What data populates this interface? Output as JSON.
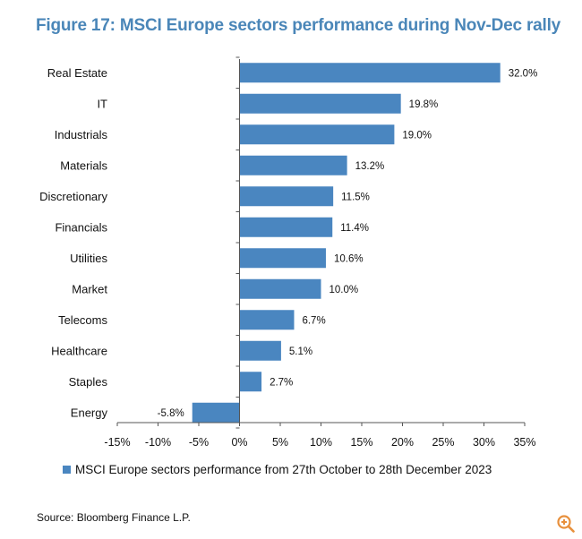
{
  "title": "Figure 17: MSCI Europe sectors performance during Nov-Dec rally",
  "source": "Source: Bloomberg Finance L.P.",
  "zoom_icon": "zoom-in-icon",
  "colors": {
    "title": "#4a86b8",
    "bar": "#4a86c0",
    "zoom": "#e8903c"
  },
  "chart_data": {
    "type": "bar",
    "orientation": "horizontal",
    "categories": [
      "Real Estate",
      "IT",
      "Industrials",
      "Materials",
      "Discretionary",
      "Financials",
      "Utilities",
      "Market",
      "Telecoms",
      "Healthcare",
      "Staples",
      "Energy"
    ],
    "values": [
      32.0,
      19.8,
      19.0,
      13.2,
      11.5,
      11.4,
      10.6,
      10.0,
      6.7,
      5.1,
      2.7,
      -5.8
    ],
    "value_labels": [
      "32.0%",
      "19.8%",
      "19.0%",
      "13.2%",
      "11.5%",
      "11.4%",
      "10.6%",
      "10.0%",
      "6.7%",
      "5.1%",
      "2.7%",
      "-5.8%"
    ],
    "series": [
      {
        "name": "MSCI Europe sectors performance from 27th October to 28th December 2023"
      }
    ],
    "xlim": [
      -15,
      35
    ],
    "xticks": [
      -15,
      -10,
      -5,
      0,
      5,
      10,
      15,
      20,
      25,
      30,
      35
    ],
    "xtick_labels": [
      "-15%",
      "-10%",
      "-5%",
      "0%",
      "5%",
      "10%",
      "15%",
      "20%",
      "25%",
      "30%",
      "35%"
    ],
    "grid": false,
    "legend_position": "bottom"
  }
}
